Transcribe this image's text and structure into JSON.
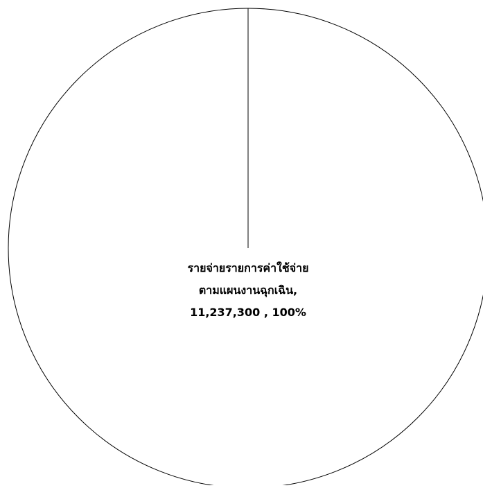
{
  "chart_data": {
    "type": "pie",
    "slices": [
      {
        "label_lines": [
          "รายจ่ายรายการค่าใช้จ่าย",
          "ตามแผนงานฉุกเฉิน,",
          "11,237,300 , 100%"
        ],
        "value": 11237300,
        "percent": 100
      }
    ],
    "colors": {
      "slice_fill": "#ffffff",
      "slice_stroke": "#000000",
      "label_text": "#000000"
    }
  }
}
